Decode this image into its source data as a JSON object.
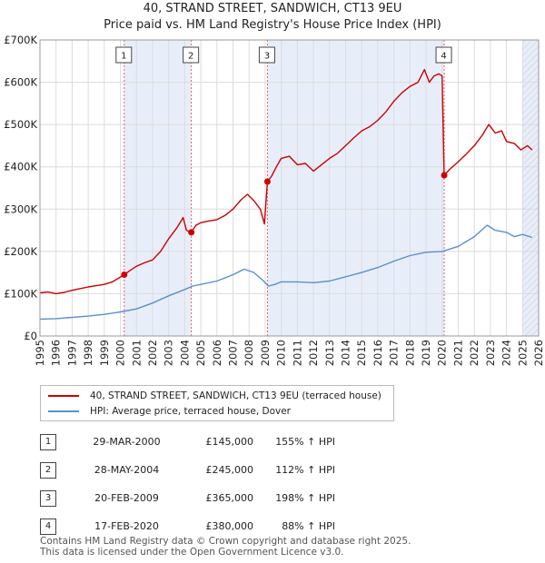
{
  "header": {
    "title_line1": "40, STRAND STREET, SANDWICH, CT13 9EU",
    "title_line2": "Price paid vs. HM Land Registry's House Price Index (HPI)"
  },
  "chart_data": {
    "type": "line",
    "title": "40, STRAND STREET, SANDWICH, CT13 9EU — Price paid vs. HM Land Registry's House Price Index (HPI)",
    "xlim": [
      1995,
      2026
    ],
    "ylim": [
      0,
      700000
    ],
    "y_ticks": [
      0,
      100000,
      200000,
      300000,
      400000,
      500000,
      600000,
      700000
    ],
    "y_tick_labels": [
      "£0",
      "£100K",
      "£200K",
      "£300K",
      "£400K",
      "£500K",
      "£600K",
      "£700K"
    ],
    "x_ticks": [
      1995,
      1996,
      1997,
      1998,
      1999,
      2000,
      2001,
      2002,
      2003,
      2004,
      2005,
      2006,
      2007,
      2008,
      2009,
      2010,
      2011,
      2012,
      2013,
      2014,
      2015,
      2016,
      2017,
      2018,
      2019,
      2020,
      2021,
      2022,
      2023,
      2024,
      2025,
      2026
    ],
    "x_tick_labels": [
      "1995",
      "1996",
      "1997",
      "1998",
      "1999",
      "2000",
      "2001",
      "2002",
      "2003",
      "2004",
      "2005",
      "2006",
      "2007",
      "2008",
      "2009",
      "2010",
      "2011",
      "2012",
      "2013",
      "2014",
      "2015",
      "2016",
      "2017",
      "2018",
      "2019",
      "2020",
      "2021",
      "2022",
      "2023",
      "2024",
      "2025",
      "2026"
    ],
    "grid": true,
    "series": [
      {
        "name": "40, STRAND STREET, SANDWICH, CT13 9EU (terraced house)",
        "color": "#cc0000",
        "points": [
          [
            1995.0,
            102000
          ],
          [
            1995.5,
            104000
          ],
          [
            1996.0,
            100000
          ],
          [
            1996.5,
            103000
          ],
          [
            1997.0,
            108000
          ],
          [
            1997.5,
            112000
          ],
          [
            1998.0,
            116000
          ],
          [
            1998.5,
            119000
          ],
          [
            1999.0,
            122000
          ],
          [
            1999.5,
            128000
          ],
          [
            2000.24,
            145000
          ],
          [
            2000.6,
            155000
          ],
          [
            2001.0,
            165000
          ],
          [
            2001.5,
            173000
          ],
          [
            2002.0,
            180000
          ],
          [
            2002.5,
            200000
          ],
          [
            2003.0,
            230000
          ],
          [
            2003.5,
            255000
          ],
          [
            2003.9,
            280000
          ],
          [
            2004.1,
            250000
          ],
          [
            2004.41,
            245000
          ],
          [
            2004.7,
            262000
          ],
          [
            2005.0,
            268000
          ],
          [
            2005.5,
            272000
          ],
          [
            2006.0,
            275000
          ],
          [
            2006.5,
            285000
          ],
          [
            2007.0,
            300000
          ],
          [
            2007.5,
            322000
          ],
          [
            2007.9,
            335000
          ],
          [
            2008.3,
            320000
          ],
          [
            2008.7,
            300000
          ],
          [
            2008.95,
            265000
          ],
          [
            2009.14,
            365000
          ],
          [
            2009.4,
            378000
          ],
          [
            2009.7,
            400000
          ],
          [
            2010.0,
            420000
          ],
          [
            2010.5,
            425000
          ],
          [
            2011.0,
            405000
          ],
          [
            2011.5,
            408000
          ],
          [
            2012.0,
            390000
          ],
          [
            2012.5,
            405000
          ],
          [
            2013.0,
            420000
          ],
          [
            2013.5,
            432000
          ],
          [
            2014.0,
            450000
          ],
          [
            2014.5,
            468000
          ],
          [
            2015.0,
            485000
          ],
          [
            2015.5,
            495000
          ],
          [
            2016.0,
            510000
          ],
          [
            2016.5,
            530000
          ],
          [
            2017.0,
            555000
          ],
          [
            2017.5,
            575000
          ],
          [
            2018.0,
            590000
          ],
          [
            2018.5,
            600000
          ],
          [
            2018.9,
            630000
          ],
          [
            2019.2,
            600000
          ],
          [
            2019.5,
            615000
          ],
          [
            2019.8,
            620000
          ],
          [
            2020.0,
            615000
          ],
          [
            2020.13,
            380000
          ],
          [
            2020.5,
            395000
          ],
          [
            2021.0,
            412000
          ],
          [
            2021.5,
            430000
          ],
          [
            2022.0,
            450000
          ],
          [
            2022.5,
            475000
          ],
          [
            2022.9,
            500000
          ],
          [
            2023.3,
            480000
          ],
          [
            2023.7,
            485000
          ],
          [
            2024.0,
            460000
          ],
          [
            2024.5,
            455000
          ],
          [
            2024.9,
            440000
          ],
          [
            2025.3,
            450000
          ],
          [
            2025.6,
            440000
          ]
        ]
      },
      {
        "name": "HPI: Average price, terraced house, Dover",
        "color": "#5a8fd0",
        "points": [
          [
            1995.0,
            40000
          ],
          [
            1996.0,
            41000
          ],
          [
            1997.0,
            44000
          ],
          [
            1998.0,
            47000
          ],
          [
            1999.0,
            51000
          ],
          [
            2000.0,
            57000
          ],
          [
            2001.0,
            64000
          ],
          [
            2002.0,
            78000
          ],
          [
            2003.0,
            95000
          ],
          [
            2004.0,
            110000
          ],
          [
            2004.5,
            118000
          ],
          [
            2005.0,
            122000
          ],
          [
            2006.0,
            130000
          ],
          [
            2007.0,
            145000
          ],
          [
            2007.7,
            158000
          ],
          [
            2008.3,
            150000
          ],
          [
            2008.9,
            130000
          ],
          [
            2009.2,
            118000
          ],
          [
            2009.6,
            122000
          ],
          [
            2010.0,
            128000
          ],
          [
            2011.0,
            128000
          ],
          [
            2012.0,
            126000
          ],
          [
            2013.0,
            130000
          ],
          [
            2014.0,
            140000
          ],
          [
            2015.0,
            150000
          ],
          [
            2016.0,
            162000
          ],
          [
            2017.0,
            177000
          ],
          [
            2018.0,
            190000
          ],
          [
            2019.0,
            198000
          ],
          [
            2020.0,
            200000
          ],
          [
            2021.0,
            212000
          ],
          [
            2022.0,
            235000
          ],
          [
            2022.8,
            262000
          ],
          [
            2023.3,
            250000
          ],
          [
            2024.0,
            245000
          ],
          [
            2024.5,
            235000
          ],
          [
            2025.0,
            240000
          ],
          [
            2025.6,
            233000
          ]
        ]
      }
    ],
    "sale_markers": [
      {
        "label": "1",
        "x": 2000.24,
        "y": 145000
      },
      {
        "label": "2",
        "x": 2004.41,
        "y": 245000
      },
      {
        "label": "3",
        "x": 2009.14,
        "y": 365000
      },
      {
        "label": "4",
        "x": 2020.13,
        "y": 380000
      }
    ],
    "shaded_ranges": [
      [
        2000.24,
        2004.41
      ],
      [
        2009.14,
        2020.13
      ],
      [
        2025.0,
        2026.0
      ]
    ]
  },
  "legend": {
    "items": [
      {
        "label": "40, STRAND STREET, SANDWICH, CT13 9EU (terraced house)",
        "color": "#cc0000"
      },
      {
        "label": "HPI: Average price, terraced house, Dover",
        "color": "#5a8fd0"
      }
    ]
  },
  "sales": [
    {
      "num": "1",
      "date": "29-MAR-2000",
      "price": "£145,000",
      "hpi": "155% ↑ HPI"
    },
    {
      "num": "2",
      "date": "28-MAY-2004",
      "price": "£245,000",
      "hpi": "112% ↑ HPI"
    },
    {
      "num": "3",
      "date": "20-FEB-2009",
      "price": "£365,000",
      "hpi": "198% ↑ HPI"
    },
    {
      "num": "4",
      "date": "17-FEB-2020",
      "price": "£380,000",
      "hpi": "88% ↑ HPI"
    }
  ],
  "footer": {
    "line1": "Contains HM Land Registry data © Crown copyright and database right 2025.",
    "line2": "This data is licensed under the Open Government Licence v3.0."
  }
}
